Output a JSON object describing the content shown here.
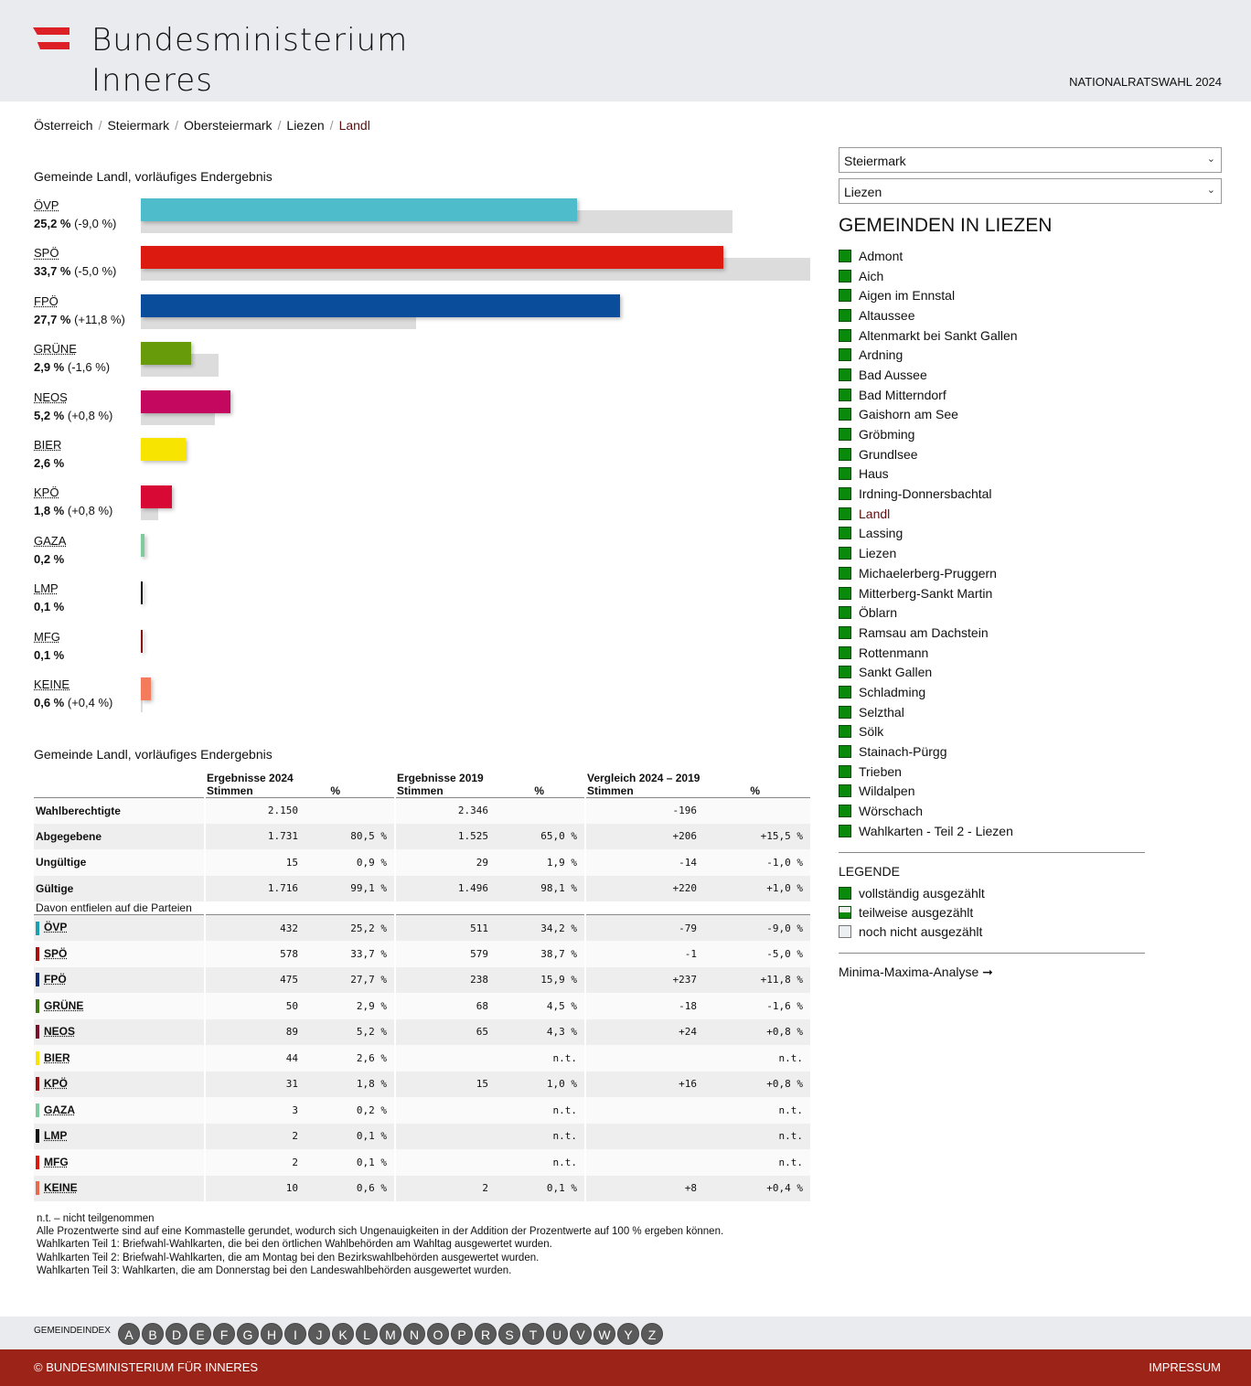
{
  "header": {
    "logo_line1": "Bundesministerium",
    "logo_line2": "Inneres",
    "election_title": "NATIONALRATSWAHL 2024"
  },
  "breadcrumb": [
    "Österreich",
    "Steiermark",
    "Obersteiermark",
    "Liezen",
    "Landl"
  ],
  "chart": {
    "title": "Gemeinde Landl, vorläufiges Endergebnis"
  },
  "chart_data": {
    "type": "bar",
    "title": "Gemeinde Landl, vorläufiges Endergebnis",
    "orientation": "horizontal",
    "categories": [
      "ÖVP",
      "SPÖ",
      "FPÖ",
      "GRÜNE",
      "NEOS",
      "BIER",
      "KPÖ",
      "GAZA",
      "LMP",
      "MFG",
      "KEINE"
    ],
    "series": [
      {
        "name": "2024",
        "values": [
          25.2,
          33.7,
          27.7,
          2.9,
          5.2,
          2.6,
          1.8,
          0.2,
          0.1,
          0.1,
          0.6
        ]
      },
      {
        "name": "2019",
        "values": [
          34.2,
          38.7,
          15.9,
          4.5,
          4.3,
          null,
          1.0,
          null,
          null,
          null,
          0.1
        ]
      }
    ],
    "labels": [
      {
        "pct": "25,2 %",
        "diff": "(-9,0 %)"
      },
      {
        "pct": "33,7 %",
        "diff": "(-5,0 %)"
      },
      {
        "pct": "27,7 %",
        "diff": "(+11,8 %)"
      },
      {
        "pct": "2,9 %",
        "diff": "(-1,6 %)"
      },
      {
        "pct": "5,2 %",
        "diff": "(+0,8 %)"
      },
      {
        "pct": "2,6 %",
        "diff": ""
      },
      {
        "pct": "1,8 %",
        "diff": "(+0,8 %)"
      },
      {
        "pct": "0,2 %",
        "diff": ""
      },
      {
        "pct": "0,1 %",
        "diff": ""
      },
      {
        "pct": "0,1 %",
        "diff": ""
      },
      {
        "pct": "0,6 %",
        "diff": "(+0,4 %)"
      }
    ],
    "colors": [
      "#4fbccb",
      "#dc1a10",
      "#0a4e9b",
      "#689b0a",
      "#c4075f",
      "#f7e400",
      "#d80a35",
      "#7ecba0",
      "#111111",
      "#8a0f10",
      "#f47c5c"
    ],
    "xlim": [
      0,
      38.7
    ]
  },
  "sidebar": {
    "select_state": "Steiermark",
    "select_district": "Liezen",
    "title": "GEMEINDEN IN LIEZEN",
    "active": "Landl",
    "gemeinden": [
      "Admont",
      "Aich",
      "Aigen im Ennstal",
      "Altaussee",
      "Altenmarkt bei Sankt Gallen",
      "Ardning",
      "Bad Aussee",
      "Bad Mitterndorf",
      "Gaishorn am See",
      "Gröbming",
      "Grundlsee",
      "Haus",
      "Irdning-Donnersbachtal",
      "Landl",
      "Lassing",
      "Liezen",
      "Michaelerberg-Pruggern",
      "Mitterberg-Sankt Martin",
      "Öblarn",
      "Ramsau am Dachstein",
      "Rottenmann",
      "Sankt Gallen",
      "Schladming",
      "Selzthal",
      "Sölk",
      "Stainach-Pürgg",
      "Trieben",
      "Wildalpen",
      "Wörschach",
      "Wahlkarten - Teil 2 - Liezen"
    ],
    "legend_title": "LEGENDE",
    "legend": [
      "vollständig ausgezählt",
      "teilweise ausgezählt",
      "noch nicht ausgezählt"
    ],
    "analyse_link": "Minima-Maxima-Analyse",
    "analyse_arrow": "➞",
    "chevron": "⌄"
  },
  "table": {
    "title": "Gemeinde Landl, vorläufiges Endergebnis",
    "group_headers": [
      "Ergebnisse 2024",
      "Ergebnisse 2019",
      "Vergleich 2024 – 2019"
    ],
    "col_stimmen": "Stimmen",
    "col_pct": "%",
    "summary_rows": [
      {
        "label": "Wahlberechtigte",
        "v24": "2.150",
        "p24": "",
        "v19": "2.346",
        "p19": "",
        "dv": "-196",
        "dp": ""
      },
      {
        "label": "Abgegebene",
        "v24": "1.731",
        "p24": "80,5 %",
        "v19": "1.525",
        "p19": "65,0 %",
        "dv": "+206",
        "dp": "+15,5 %"
      },
      {
        "label": "Ungültige",
        "v24": "15",
        "p24": "0,9 %",
        "v19": "29",
        "p19": "1,9 %",
        "dv": "-14",
        "dp": "-1,0 %"
      },
      {
        "label": "Gültige",
        "v24": "1.716",
        "p24": "99,1 %",
        "v19": "1.496",
        "p19": "98,1 %",
        "dv": "+220",
        "dp": "+1,0 %"
      }
    ],
    "subheader": "Davon entfielen auf die Parteien",
    "party_rows": [
      {
        "label": "ÖVP",
        "color": "#1a9fb0",
        "v24": "432",
        "p24": "25,2 %",
        "v19": "511",
        "p19": "34,2 %",
        "dv": "-79",
        "dp": "-9,0 %"
      },
      {
        "label": "SPÖ",
        "color": "#a80e0e",
        "v24": "578",
        "p24": "33,7 %",
        "v19": "579",
        "p19": "38,7 %",
        "dv": "-1",
        "dp": "-5,0 %"
      },
      {
        "label": "FPÖ",
        "color": "#0d2a6e",
        "v24": "475",
        "p24": "27,7 %",
        "v19": "238",
        "p19": "15,9 %",
        "dv": "+237",
        "dp": "+11,8 %"
      },
      {
        "label": "GRÜNE",
        "color": "#3f7a10",
        "v24": "50",
        "p24": "2,9 %",
        "v19": "68",
        "p19": "4,5 %",
        "dv": "-18",
        "dp": "-1,6 %"
      },
      {
        "label": "NEOS",
        "color": "#7a0f2e",
        "v24": "89",
        "p24": "5,2 %",
        "v19": "65",
        "p19": "4,3 %",
        "dv": "+24",
        "dp": "+0,8 %"
      },
      {
        "label": "BIER",
        "color": "#f7e400",
        "v24": "44",
        "p24": "2,6 %",
        "v19": "",
        "p19": "n.t.",
        "dv": "",
        "dp": "n.t."
      },
      {
        "label": "KPÖ",
        "color": "#9b0e12",
        "v24": "31",
        "p24": "1,8 %",
        "v19": "15",
        "p19": "1,0 %",
        "dv": "+16",
        "dp": "+0,8 %"
      },
      {
        "label": "GAZA",
        "color": "#7ecba0",
        "v24": "3",
        "p24": "0,2 %",
        "v19": "",
        "p19": "n.t.",
        "dv": "",
        "dp": "n.t."
      },
      {
        "label": "LMP",
        "color": "#111111",
        "v24": "2",
        "p24": "0,1 %",
        "v19": "",
        "p19": "n.t.",
        "dv": "",
        "dp": "n.t."
      },
      {
        "label": "MFG",
        "color": "#d81a10",
        "v24": "2",
        "p24": "0,1 %",
        "v19": "",
        "p19": "n.t.",
        "dv": "",
        "dp": "n.t."
      },
      {
        "label": "KEINE",
        "color": "#e8694e",
        "v24": "10",
        "p24": "0,6 %",
        "v19": "2",
        "p19": "0,1 %",
        "dv": "+8",
        "dp": "+0,4 %"
      }
    ]
  },
  "notes": [
    "n.t. – nicht teilgenommen",
    "Alle Prozentwerte sind auf eine Kommastelle gerundet, wodurch sich Ungenauigkeiten in der Addition der Prozentwerte auf 100 % ergeben können.",
    "Wahlkarten Teil 1: Briefwahl-Wahlkarten, die bei den örtlichen Wahlbehörden am Wahltag ausgewertet wurden.",
    "Wahlkarten Teil 2: Briefwahl-Wahlkarten, die am Montag bei den Bezirkswahlbehörden ausgewertet wurden.",
    "Wahlkarten Teil 3: Wahlkarten, die am Donnerstag bei den Landeswahlbehörden ausgewertet wurden."
  ],
  "index": {
    "label": "GEMEINDEINDEX",
    "letters": [
      "A",
      "B",
      "D",
      "E",
      "F",
      "G",
      "H",
      "I",
      "J",
      "K",
      "L",
      "M",
      "N",
      "O",
      "P",
      "R",
      "S",
      "T",
      "U",
      "V",
      "W",
      "Y",
      "Z"
    ]
  },
  "footer": {
    "copyright": "© BUNDESMINISTERIUM FÜR INNERES",
    "impressum": "IMPRESSUM"
  }
}
